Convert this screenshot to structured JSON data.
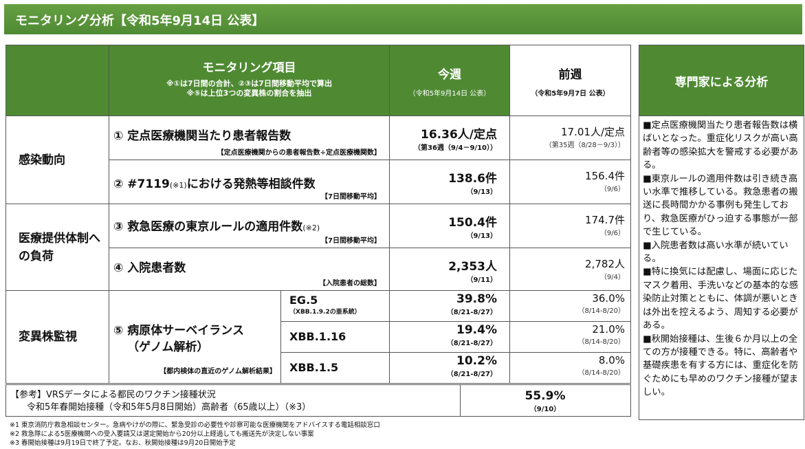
{
  "header": {
    "title": "モニタリング分析【令和5年9月14日 公表】"
  },
  "table": {
    "head": {
      "item_title": "モニタリング項目",
      "item_notes": [
        "※①は7日間の合計、②③は7日間移動平均で算出",
        "※⑤は上位3つの変異株の割合を抽出"
      ],
      "this_week": "今週",
      "this_week_date": "（令和5年9月14日 公表）",
      "last_week": "前週",
      "last_week_date": "（令和5年9月7日 公表）"
    },
    "groups": [
      {
        "label": "感染動向",
        "rows": [
          {
            "item": "① 定点医療機関当たり患者報告数",
            "note": "【定点医療機関からの患者報告数÷定点医療機関数】",
            "current": "16.36人/定点",
            "current_sub": "（第36週（9/4－9/10））",
            "previous": "17.01人/定点",
            "previous_sub": "（第35週（8/28－9/3））"
          },
          {
            "item": "② #7119",
            "item_mark": "(※1)",
            "item_rest": "における発熱等相談件数",
            "note": "【7日間移動平均】",
            "current": "138.6件",
            "current_sub": "（9/13）",
            "previous": "156.4件",
            "previous_sub": "（9/6）"
          }
        ]
      },
      {
        "label": "医療提供体制への負荷",
        "rows": [
          {
            "item": "③ 救急医療の東京ルールの適用件数",
            "item_mark": "(※2)",
            "note": "【7日間移動平均】",
            "current": "150.4件",
            "current_sub": "（9/13）",
            "previous": "174.7件",
            "previous_sub": "（9/6）"
          },
          {
            "item": "④ 入院患者数",
            "note": "【入院患者の総数】",
            "current": "2,353人",
            "current_sub": "（9/11）",
            "previous": "2,782人",
            "previous_sub": "（9/4）"
          }
        ]
      },
      {
        "label": "変異株監視",
        "item_lines": [
          "⑤ 病原体サーベイランス",
          "（ゲノム解析）"
        ],
        "note": "【都内検体の直近のゲノム解析結果】",
        "variants": [
          {
            "name": "EG.5",
            "sub": "（XBB.1.9.2の亜系統）",
            "current": "39.8%",
            "current_sub": "（8/21-8/27）",
            "previous": "36.0%",
            "previous_sub": "（8/14-8/20）"
          },
          {
            "name": "XBB.1.16",
            "current": "19.4%",
            "current_sub": "（8/21-8/27）",
            "previous": "21.0%",
            "previous_sub": "（8/14-8/20）"
          },
          {
            "name": "XBB.1.5",
            "current": "10.2%",
            "current_sub": "（8/21-8/27）",
            "previous": "8.0%",
            "previous_sub": "（8/14-8/20）"
          }
        ]
      }
    ],
    "reference": {
      "lines": [
        "【参考】VRSデータによる都民のワクチン接種状況",
        "令和5年春開始接種（令和5年5月8日開始）高齢者（65歳以上）（※3）"
      ],
      "value": "55.9%",
      "value_sub": "（9/10）"
    }
  },
  "expert": {
    "title": "専門家による分析",
    "paragraphs": [
      "■定点医療機関当たり患者報告数は横ばいとなった。重症化リスクが高い高齢者等の感染拡大を警戒する必要がある。",
      "■東京ルールの適用件数は引き続き高い水準で推移している。救急患者の搬送に長時間かかる事例も発生しており、救急医療がひっ迫する事態が一部で生じている。",
      "■入院患者数は高い水準が続いている。",
      "■特に換気には配慮し、場面に応じたマスク着用、手洗いなどの基本的な感染防止対策とともに、体調が悪いときは外出を控えるよう、周知する必要がある。",
      "■秋開始接種は、生後６か月以上の全ての方が接種できる。特に、高齢者や基礎疾患を有する方には、重症化を防ぐためにも早めのワクチン接種が望ましい。"
    ]
  },
  "footnotes": [
    "※1 東京消防庁救急相談センター。急病やけがの際に、緊急受診の必要性や診察可能な医療機関をアドバイスする電話相談窓口",
    "※2 救急隊による5医療機関への受入要請又は選定開始から20分以上経過しても搬送先が決定しない事案",
    "※3 春開始接種は9月19日で終了予定。なお、秋開始接種は9月20日開始予定"
  ]
}
